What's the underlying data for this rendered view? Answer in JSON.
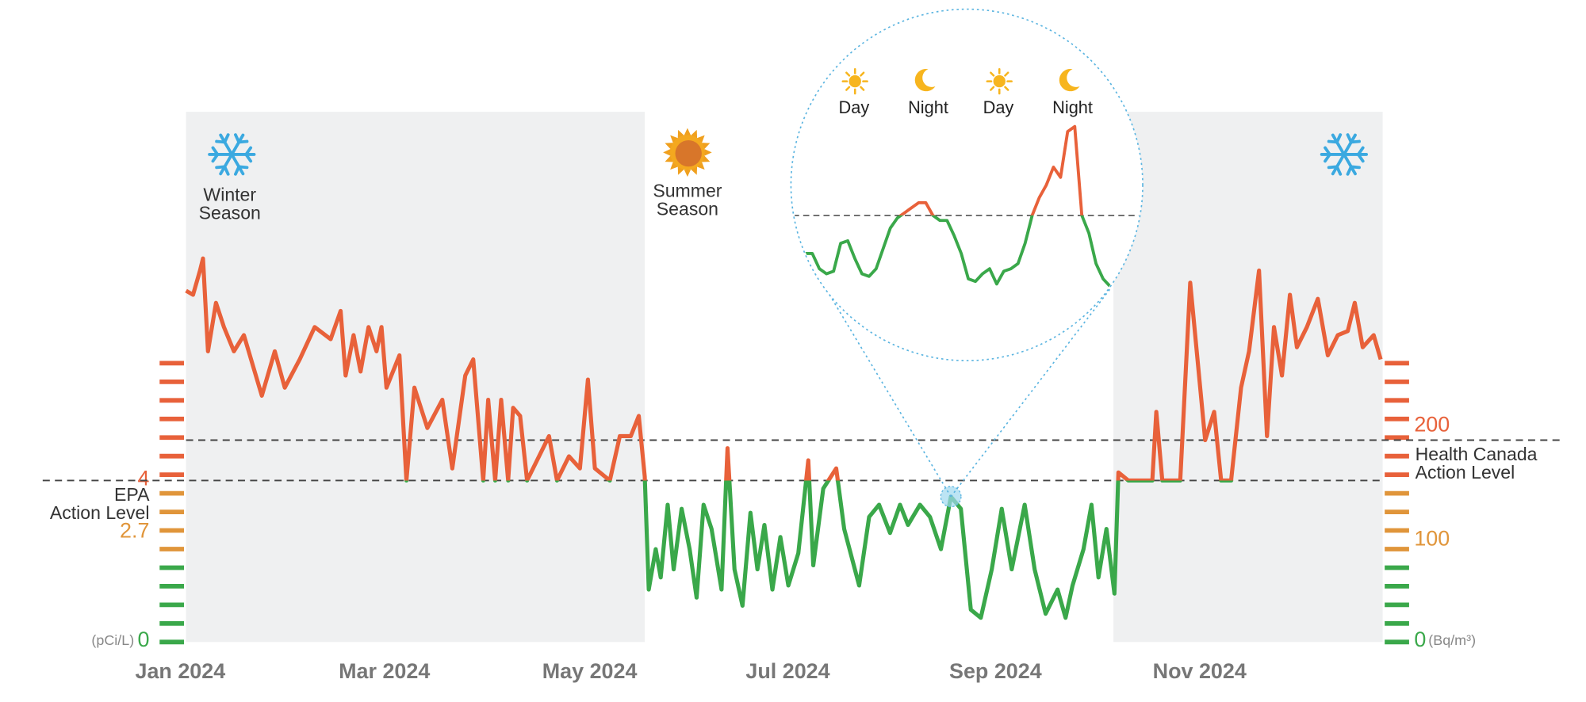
{
  "chart_data": {
    "type": "line",
    "x": [
      0.0,
      0.07,
      0.14,
      0.17,
      0.22,
      0.3,
      0.38,
      0.48,
      0.58,
      0.76,
      0.89,
      0.99,
      1.14,
      1.29,
      1.45,
      1.55,
      1.6,
      1.68,
      1.75,
      1.83,
      1.91,
      1.96,
      2.01,
      2.14,
      2.21,
      2.29,
      2.42,
      2.57,
      2.67,
      2.8,
      2.88,
      2.98,
      3.03,
      3.1,
      3.16,
      3.23,
      3.28,
      3.35,
      3.42,
      3.64,
      3.72,
      3.84,
      3.95,
      4.03,
      4.1,
      4.25,
      4.35,
      4.46,
      4.54,
      4.6,
      4.64,
      4.71,
      4.76,
      4.83,
      4.89,
      4.97,
      5.05,
      5.12,
      5.19,
      5.27,
      5.37,
      5.43,
      5.5,
      5.58,
      5.66,
      5.73,
      5.8,
      5.88,
      5.96,
      6.04,
      6.14,
      6.24,
      6.29,
      6.39,
      6.52,
      6.6,
      6.75,
      6.85,
      6.95,
      7.06,
      7.16,
      7.24,
      7.36,
      7.46,
      7.57,
      7.67,
      7.77,
      7.87,
      7.97,
      8.08,
      8.18,
      8.28,
      8.41,
      8.51,
      8.62,
      8.74,
      8.82,
      8.89,
      9.0,
      9.08,
      9.15,
      9.23,
      9.31,
      9.35,
      9.45,
      9.56,
      9.69,
      9.73,
      9.79,
      9.87,
      9.97,
      10.07,
      10.17,
      10.22,
      10.31,
      10.38,
      10.48,
      10.58,
      10.66,
      10.76,
      10.84,
      10.91,
      10.99,
      11.07,
      11.14,
      11.24,
      11.35,
      11.45,
      11.55,
      11.65,
      11.72,
      11.8,
      11.91,
      11.98
    ],
    "values": [
      8.7,
      8.6,
      9.2,
      9.5,
      7.2,
      8.4,
      7.8,
      7.2,
      7.6,
      6.1,
      7.2,
      6.3,
      7.0,
      7.8,
      7.5,
      8.2,
      6.6,
      7.6,
      6.7,
      7.8,
      7.2,
      7.8,
      6.3,
      7.1,
      4.0,
      6.3,
      5.3,
      6.0,
      4.3,
      6.6,
      7.0,
      4.0,
      6.0,
      4.0,
      6.0,
      4.0,
      5.8,
      5.6,
      4.0,
      5.1,
      4.0,
      4.6,
      4.3,
      6.5,
      4.3,
      4.0,
      5.1,
      5.1,
      5.6,
      4.1,
      1.3,
      2.3,
      1.6,
      3.4,
      1.8,
      3.3,
      2.3,
      1.1,
      3.4,
      2.8,
      1.3,
      4.8,
      1.8,
      0.9,
      3.2,
      1.8,
      2.9,
      1.3,
      2.6,
      1.4,
      2.2,
      4.5,
      1.9,
      3.8,
      4.3,
      2.8,
      1.4,
      3.1,
      3.4,
      2.7,
      3.4,
      2.9,
      3.4,
      3.1,
      2.3,
      3.6,
      3.3,
      0.8,
      0.6,
      1.8,
      3.3,
      1.8,
      3.4,
      1.8,
      0.7,
      1.3,
      0.6,
      1.4,
      2.3,
      3.4,
      1.6,
      2.8,
      1.2,
      4.2,
      4.0,
      4.0,
      4.0,
      5.7,
      4.0,
      4.0,
      4.0,
      8.9,
      6.3,
      5.0,
      5.7,
      4.0,
      4.0,
      6.3,
      7.2,
      9.2,
      5.1,
      7.8,
      6.6,
      8.6,
      7.3,
      7.8,
      8.5,
      7.1,
      7.6,
      7.7,
      8.4,
      7.3,
      7.6,
      7.0
    ],
    "color_above": "#e8613a",
    "color_below": "#3aa84a",
    "xlim": [
      0,
      12
    ],
    "xticks": [
      {
        "value": 0,
        "label": "Jan 2024"
      },
      {
        "value": 2,
        "label": "Mar 2024"
      },
      {
        "value": 4,
        "label": "May 2024"
      },
      {
        "value": 6,
        "label": "Jul 2024"
      },
      {
        "value": 8,
        "label": "Sep 2024"
      },
      {
        "value": 10,
        "label": "Nov 2024"
      }
    ],
    "ylim": [
      0,
      10
    ],
    "yticks": [
      0,
      2.7,
      4
    ],
    "ytick_colors": [
      "#3aa84a",
      "#e0953a",
      "#e8613a"
    ],
    "y_unit": "(pCi/L)",
    "y2lim": [
      0,
      400
    ],
    "y2ticks": [
      0,
      100,
      200
    ],
    "y2tick_colors": [
      "#3aa84a",
      "#e0953a",
      "#e8613a"
    ],
    "y2_unit": "(Bq/m³)",
    "reference_lines": [
      {
        "value": 4,
        "axis": "y",
        "label": [
          "EPA",
          "Action Level"
        ]
      },
      {
        "value": 200,
        "axis": "y2",
        "label": [
          "Health Canada",
          "Action Level"
        ]
      }
    ],
    "bands": [
      {
        "start": 0,
        "end": 4.6,
        "shaded": true,
        "icon": "snow",
        "label": [
          "Winter",
          "Season"
        ]
      },
      {
        "start": 4.6,
        "end": 9.3,
        "shaded": false,
        "icon": "sun",
        "label": [
          "Summer",
          "Season"
        ]
      },
      {
        "start": 9.3,
        "end": 12,
        "shaded": true,
        "icon": "snow"
      }
    ],
    "focus": {
      "x": 7.67,
      "y": 3.6
    },
    "inset": {
      "labels": [
        "Day",
        "Night",
        "Day",
        "Night"
      ],
      "icons": [
        "sun",
        "moon",
        "sun",
        "moon"
      ],
      "ylim": [
        0,
        10
      ],
      "values": [
        2.5,
        2.5,
        1.9,
        1.7,
        1.8,
        2.9,
        3.0,
        2.3,
        1.7,
        1.6,
        1.9,
        2.7,
        3.5,
        3.9,
        4.1,
        4.3,
        4.5,
        4.5,
        4.0,
        3.8,
        3.8,
        3.2,
        2.5,
        1.5,
        1.4,
        1.7,
        1.9,
        1.3,
        1.8,
        1.9,
        2.1,
        2.9,
        4.0,
        4.7,
        5.2,
        5.9,
        5.5,
        7.3,
        7.5,
        4.0,
        3.3,
        2.1,
        1.5,
        1.2
      ]
    }
  }
}
